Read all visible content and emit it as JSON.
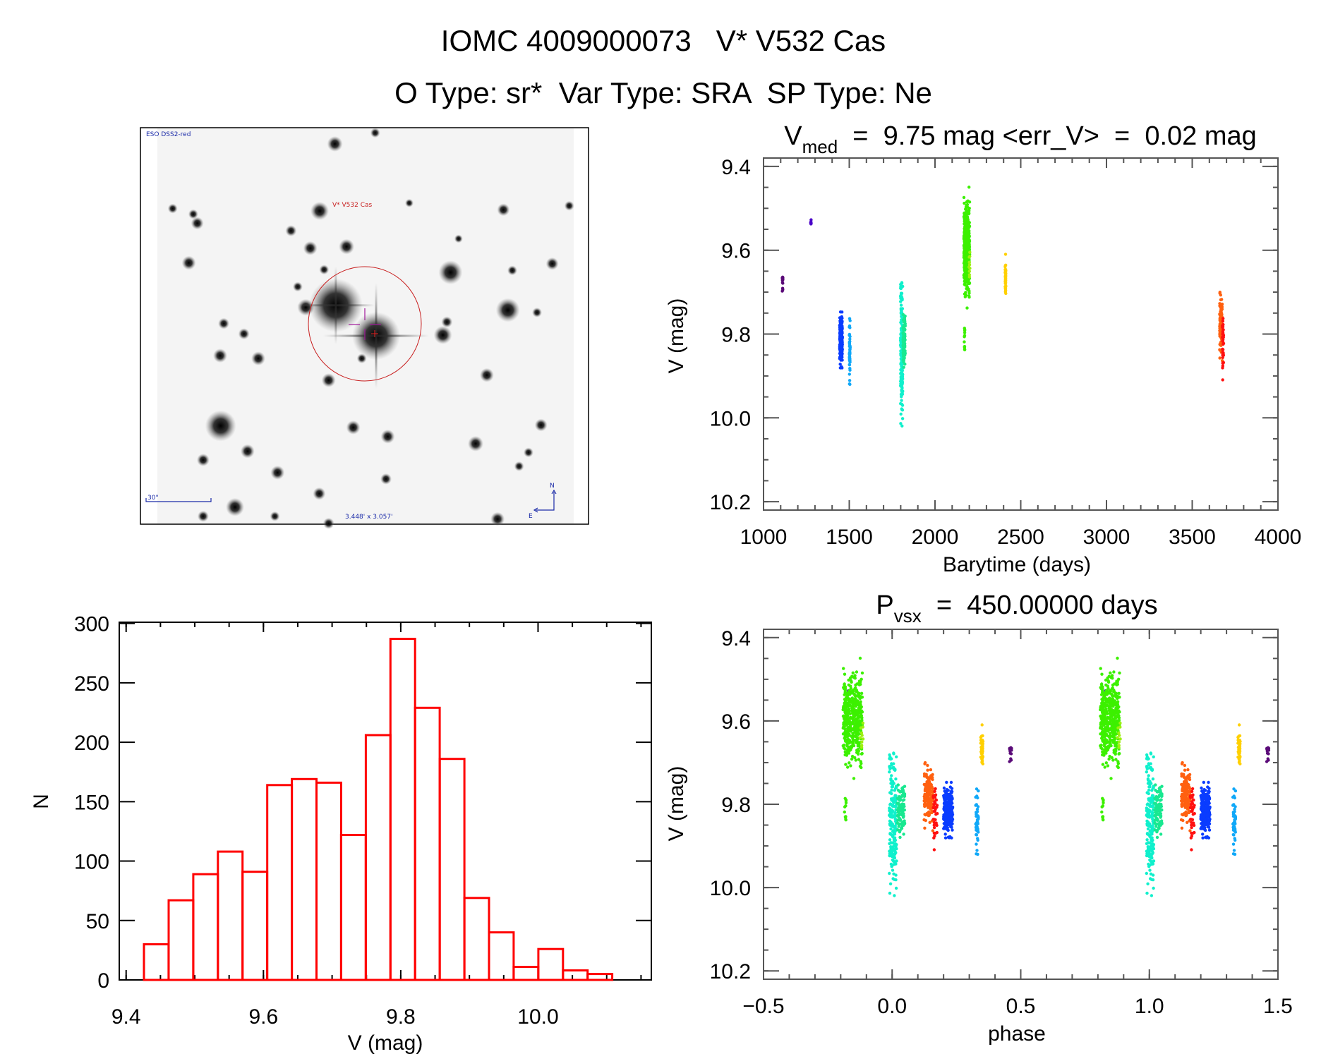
{
  "title": {
    "line1": "IOMC 4009000073   V* V532 Cas",
    "line2": "O Type: sr*  Var Type: SRA  SP Type: Ne"
  },
  "finder_image": {
    "survey": "ESO DSS2-red",
    "target_label": "V* V532 Cas",
    "scale_bar": "30\"",
    "field_size": "3.448' x 3.057'",
    "north": "N",
    "east": "E"
  },
  "chart_data": [
    {
      "id": "light_curve",
      "type": "scatter",
      "title": {
        "main": "V",
        "sub": "med",
        "rest": "  =  9.75 mag <err_V>  =  0.02 mag"
      },
      "xlabel": "Barytime (days)",
      "ylabel": "V (mag)",
      "xlim": [
        1000,
        4000
      ],
      "ylim": [
        10.22,
        9.38
      ],
      "xticks": [
        "1000",
        "1500",
        "2000",
        "2500",
        "3000",
        "3500",
        "4000"
      ],
      "yticks": [
        "9.4",
        "9.6",
        "9.8",
        "10.0",
        "10.2"
      ],
      "x_minor_step": 100,
      "y_minor_step": 0.05,
      "clusters": [
        {
          "t": [
            1109,
            1113
          ],
          "v": [
            9.64,
            9.71
          ],
          "n": 15,
          "color": "#5a0a78"
        },
        {
          "t": [
            1275,
            1278
          ],
          "v": [
            9.52,
            9.55
          ],
          "n": 8,
          "color": "#4a00c8"
        },
        {
          "t": [
            1444,
            1460
          ],
          "v": [
            9.73,
            9.9
          ],
          "n": 240,
          "color": "#0a3cff"
        },
        {
          "t": [
            1449,
            1451
          ],
          "v": [
            9.68,
            9.95
          ],
          "n": 4,
          "color": "#0a3cff"
        },
        {
          "t": [
            1500,
            1505
          ],
          "v": [
            9.73,
            9.95
          ],
          "n": 50,
          "color": "#10a8f8"
        },
        {
          "t": [
            1799,
            1812
          ],
          "v": [
            9.59,
            10.1
          ],
          "n": 200,
          "color": "#10f0cc"
        },
        {
          "t": [
            1813,
            1826
          ],
          "v": [
            9.71,
            9.92
          ],
          "n": 100,
          "color": "#18e890"
        },
        {
          "t": [
            2168,
            2202
          ],
          "v": [
            9.43,
            9.76
          ],
          "n": 420,
          "color": "#3cf000"
        },
        {
          "t": [
            2170,
            2174
          ],
          "v": [
            9.76,
            9.88
          ],
          "n": 12,
          "color": "#3cf000"
        },
        {
          "t": [
            2198,
            2204
          ],
          "v": [
            9.58,
            9.7
          ],
          "n": 10,
          "color": "#9cf010"
        },
        {
          "t": [
            2409,
            2413
          ],
          "v": [
            9.59,
            9.74
          ],
          "n": 40,
          "color": "#ffd000"
        },
        {
          "t": [
            3660,
            3676
          ],
          "v": [
            9.67,
            9.88
          ],
          "n": 150,
          "color": "#ff6010"
        },
        {
          "t": [
            3676,
            3683
          ],
          "v": [
            9.68,
            9.95
          ],
          "n": 40,
          "color": "#ff1010"
        }
      ]
    },
    {
      "id": "histogram",
      "type": "bar",
      "xlabel": "V (mag)",
      "ylabel": "N",
      "xlim": [
        9.39,
        10.165
      ],
      "ylim": [
        0,
        301
      ],
      "xticks": [
        "9.4",
        "9.6",
        "9.8",
        "10.0"
      ],
      "yticks": [
        "0",
        "50",
        "100",
        "150",
        "200",
        "250",
        "300"
      ],
      "x_minor_step": 0.05,
      "bin_start": 9.426,
      "bin_width": 0.0359,
      "counts": [
        30,
        67,
        89,
        108,
        91,
        164,
        169,
        166,
        122,
        206,
        287,
        229,
        186,
        69,
        40,
        11,
        26,
        8,
        5
      ],
      "color": "#ff0000"
    },
    {
      "id": "phase_curve",
      "type": "scatter",
      "title": {
        "main": "P",
        "sub": "vsx",
        "rest": "  =  450.00000 days"
      },
      "period": 450.0,
      "epoch": 1804,
      "xlabel": "phase",
      "ylabel": "V (mag)",
      "xlim": [
        -0.5,
        1.5
      ],
      "ylim": [
        10.22,
        9.38
      ],
      "xticks": [
        "−0.5",
        "0.0",
        "0.5",
        "1.0",
        "1.5"
      ],
      "yticks": [
        "9.4",
        "9.6",
        "9.8",
        "10.0",
        "10.2"
      ],
      "x_minor_step": 0.1,
      "y_minor_step": 0.05
    }
  ]
}
